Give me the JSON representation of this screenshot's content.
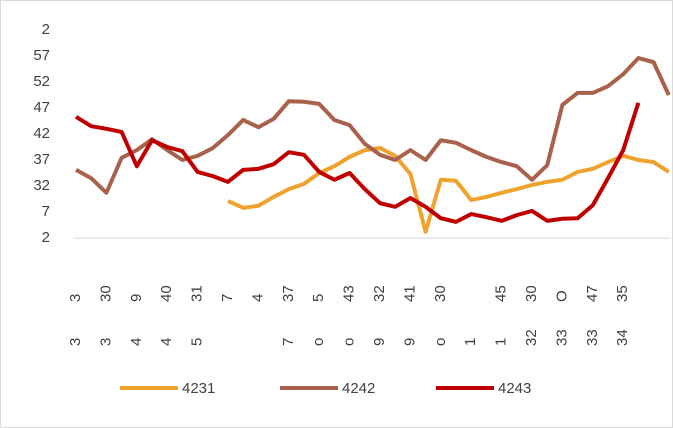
{
  "chart_data": {
    "type": "line",
    "categories": [
      [
        "3",
        "3"
      ],
      null,
      [
        "30",
        "3"
      ],
      null,
      [
        "9",
        "4"
      ],
      null,
      [
        "40",
        "4"
      ],
      null,
      [
        "31",
        "5"
      ],
      null,
      [
        "7",
        null
      ],
      null,
      [
        "4",
        null
      ],
      null,
      [
        "37",
        "7"
      ],
      null,
      [
        "5",
        "o"
      ],
      null,
      [
        "43",
        "o"
      ],
      null,
      [
        "32",
        "9"
      ],
      null,
      [
        "41",
        "9"
      ],
      null,
      [
        "30",
        "o"
      ],
      null,
      [
        null,
        "1"
      ],
      null,
      [
        "45",
        "1"
      ],
      null,
      [
        "30",
        "32"
      ],
      null,
      [
        "O",
        "33"
      ],
      null,
      [
        "47",
        "33"
      ],
      null,
      [
        "35",
        "34"
      ],
      null,
      null,
      null
    ],
    "series": [
      {
        "name": "4231",
        "color": "#f0a22e",
        "values": [
          null,
          null,
          null,
          null,
          null,
          null,
          null,
          null,
          null,
          null,
          9.1,
          7.8,
          8.2,
          9.9,
          11.4,
          12.4,
          14.5,
          15.8,
          17.6,
          18.9,
          19.3,
          17.8,
          14.3,
          3.2,
          13.2,
          13.0,
          9.3,
          9.9,
          10.7,
          11.4,
          12.2,
          12.8,
          13.2,
          14.7,
          15.3,
          16.6,
          17.8,
          17.0,
          16.6,
          14.7
        ]
      },
      {
        "name": "4242",
        "color": "#a8614a",
        "values": [
          15.1,
          13.5,
          10.7,
          17.4,
          18.9,
          21.0,
          18.9,
          17.0,
          17.8,
          19.3,
          21.8,
          24.7,
          23.3,
          24.9,
          28.3,
          28.2,
          27.8,
          24.7,
          23.7,
          20.1,
          18.0,
          17.0,
          18.9,
          17.0,
          20.8,
          20.3,
          18.9,
          17.6,
          16.6,
          15.8,
          13.2,
          16.0,
          27.6,
          29.9,
          29.9,
          31.2,
          33.5,
          36.6,
          35.8,
          29.5
        ]
      },
      {
        "name": "4243",
        "color": "#c00000",
        "values": [
          25.3,
          23.5,
          23.0,
          22.4,
          15.8,
          20.8,
          19.5,
          18.7,
          14.7,
          13.9,
          12.8,
          15.1,
          15.3,
          16.2,
          18.5,
          18.0,
          14.7,
          13.2,
          14.5,
          11.4,
          8.7,
          8.0,
          9.7,
          8.0,
          5.8,
          5.1,
          6.6,
          6.0,
          5.3,
          6.4,
          7.2,
          5.3,
          5.7,
          5.8,
          8.3,
          13.5,
          18.9,
          28.0,
          null,
          null
        ]
      }
    ],
    "ylim": [
      2,
      42
    ],
    "yticks": [
      2,
      7,
      {
        "value": 12,
        "label": "32"
      },
      {
        "value": 17,
        "label": "37"
      },
      {
        "value": 22,
        "label": "42"
      },
      {
        "value": 27,
        "label": "47"
      },
      {
        "value": 32,
        "label": "52"
      },
      {
        "value": 37,
        "label": "57"
      },
      {
        "value": 42,
        "label": "2"
      }
    ],
    "legend": "bottom"
  }
}
